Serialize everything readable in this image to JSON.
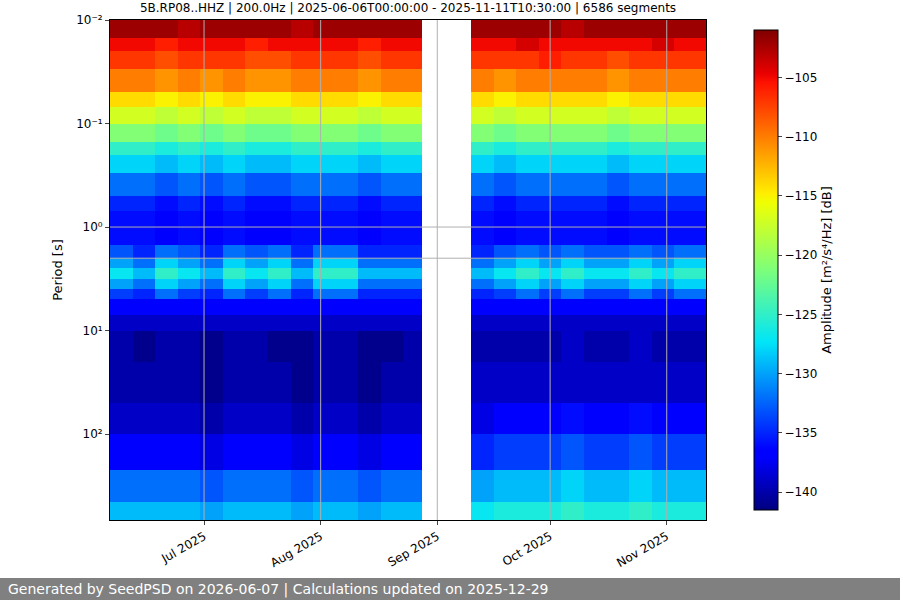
{
  "chart_data": {
    "type": "heatmap",
    "title": "5B.RP08..HHZ | 200.0Hz | 2025-06-06T00:00:00 - 2025-11-11T10:30:00 | 6586 segments",
    "y_label": "Period [s]",
    "colorbar_label": "Amplitude [m²/s⁴/Hz] [dB]",
    "footer": "Generated by SeedPSD on 2026-06-07 | Calculations updated on 2025-12-29",
    "color": "jet",
    "log": "y",
    "grid": true,
    "xlim": [
      "2025-06-06T00:00:00",
      "2025-11-11T10:30:00"
    ],
    "xticks": [
      {
        "value": "2025-07-01",
        "label": "Jul 2025"
      },
      {
        "value": "2025-08-01",
        "label": "Aug 2025"
      },
      {
        "value": "2025-09-01",
        "label": "Sep 2025"
      },
      {
        "value": "2025-10-01",
        "label": "Oct 2025"
      },
      {
        "value": "2025-11-01",
        "label": "Nov 2025"
      }
    ],
    "ylim": [
      0.01,
      676
    ],
    "yticks": [
      {
        "value": 0.01,
        "label": "10⁻²"
      },
      {
        "value": 0.1,
        "label": "10⁻¹"
      },
      {
        "value": 1,
        "label": "10⁰"
      },
      {
        "value": 10,
        "label": "10¹"
      },
      {
        "value": 100,
        "label": "10²"
      }
    ],
    "colorbar_range": [
      -141.5,
      -101
    ],
    "colorbar_ticks": [
      -140,
      -135,
      -130,
      -125,
      -120,
      -115,
      -110,
      -105
    ],
    "x_edges": [
      "2025-06-06",
      "2025-06-12",
      "2025-06-18",
      "2025-06-24",
      "2025-06-30",
      "2025-07-06",
      "2025-07-12",
      "2025-07-18",
      "2025-07-24",
      "2025-07-30",
      "2025-08-05",
      "2025-08-11",
      "2025-08-17",
      "2025-08-23",
      "2025-08-28",
      "2025-09-10",
      "2025-09-16",
      "2025-09-22",
      "2025-09-28",
      "2025-10-04",
      "2025-10-10",
      "2025-10-16",
      "2025-10-22",
      "2025-10-28",
      "2025-11-03",
      "2025-11-11T10:30:00"
    ],
    "period_edges": [
      0.01,
      0.015,
      0.02,
      0.03,
      0.05,
      0.07,
      0.1,
      0.15,
      0.2,
      0.3,
      0.5,
      0.7,
      1,
      1.5,
      2,
      2.5,
      3.2,
      4,
      5,
      7,
      10,
      20,
      50,
      100,
      220,
      450,
      676
    ],
    "cells": [
      [
        -102,
        -102,
        -102,
        -103,
        -102,
        -102,
        -102,
        -102,
        -103,
        -102,
        -102,
        -102,
        -102,
        -102,
        null,
        -102,
        -102,
        -102,
        -102,
        -103,
        -102,
        -102,
        -102,
        -102,
        -102
      ],
      [
        -105,
        -105,
        -106,
        -105,
        -105,
        -105,
        -106,
        -105,
        -105,
        -105,
        -105,
        -106,
        -105,
        -105,
        null,
        -105,
        -105,
        -104,
        -105,
        -105,
        -105,
        -105,
        -105,
        -104,
        -105
      ],
      [
        -107,
        -107,
        -108,
        -107,
        -107,
        -107,
        -108,
        -108,
        -107,
        -107,
        -107,
        -108,
        -107,
        -107,
        null,
        -107,
        -107,
        -107,
        -106,
        -107,
        -107,
        -108,
        -107,
        -107,
        -107
      ],
      [
        -110,
        -110,
        -111,
        -110,
        -111,
        -110,
        -111,
        -111,
        -110,
        -110,
        -110,
        -111,
        -110,
        -110,
        null,
        -110,
        -111,
        -110,
        -110,
        -110,
        -110,
        -111,
        -110,
        -110,
        -110
      ],
      [
        -114,
        -114,
        -115,
        -114,
        -115,
        -114,
        -115,
        -115,
        -114,
        -114,
        -114,
        -115,
        -114,
        -114,
        null,
        -114,
        -115,
        -114,
        -114,
        -114,
        -114,
        -115,
        -114,
        -114,
        -114
      ],
      [
        -117,
        -117,
        -118,
        -117,
        -118,
        -117,
        -118,
        -118,
        -117,
        -117,
        -117,
        -118,
        -117,
        -117,
        null,
        -117,
        -118,
        -117,
        -117,
        -117,
        -117,
        -118,
        -117,
        -117,
        -117
      ],
      [
        -121,
        -121,
        -122,
        -121,
        -122,
        -121,
        -122,
        -122,
        -121,
        -121,
        -121,
        -122,
        -121,
        -121,
        null,
        -121,
        -122,
        -121,
        -121,
        -121,
        -121,
        -122,
        -121,
        -121,
        -121
      ],
      [
        -125,
        -125,
        -126,
        -125,
        -126,
        -125,
        -126,
        -126,
        -125,
        -125,
        -125,
        -126,
        -125,
        -125,
        null,
        -125,
        -126,
        -125,
        -125,
        -125,
        -125,
        -126,
        -125,
        -125,
        -125
      ],
      [
        -128,
        -128,
        -129,
        -128,
        -129,
        -128,
        -129,
        -129,
        -128,
        -128,
        -128,
        -129,
        -128,
        -128,
        null,
        -128,
        -129,
        -128,
        -128,
        -128,
        -128,
        -129,
        -128,
        -128,
        -128
      ],
      [
        -132,
        -132,
        -133,
        -132,
        -133,
        -132,
        -133,
        -133,
        -132,
        -132,
        -132,
        -133,
        -132,
        -132,
        null,
        -132,
        -133,
        -132,
        -132,
        -132,
        -132,
        -133,
        -132,
        -132,
        -132
      ],
      [
        -135,
        -135,
        -136,
        -135,
        -136,
        -135,
        -136,
        -136,
        -135,
        -135,
        -135,
        -136,
        -135,
        -135,
        null,
        -135,
        -136,
        -135,
        -135,
        -135,
        -135,
        -136,
        -135,
        -135,
        -135
      ],
      [
        -136,
        -136,
        -137,
        -136,
        -137,
        -136,
        -137,
        -137,
        -136,
        -136,
        -136,
        -137,
        -136,
        -136,
        null,
        -136,
        -137,
        -136,
        -136,
        -136,
        -136,
        -137,
        -136,
        -136,
        -136
      ],
      [
        -136,
        -136,
        -137,
        -136,
        -137,
        -136,
        -137,
        -137,
        -136,
        -136,
        -136,
        -137,
        -136,
        -136,
        null,
        -136,
        -137,
        -136,
        -136,
        -136,
        -136,
        -137,
        -136,
        -136,
        -136
      ],
      [
        -133,
        -135,
        -132,
        -133,
        -135,
        -132,
        -133,
        -132,
        -135,
        -132,
        -132,
        -135,
        -135,
        -135,
        null,
        -135,
        -133,
        -132,
        -133,
        -132,
        -133,
        -133,
        -132,
        -133,
        -132
      ],
      [
        -130,
        -132,
        -128,
        -130,
        -132,
        -128,
        -130,
        -128,
        -132,
        -128,
        -128,
        -132,
        -132,
        -132,
        null,
        -132,
        -130,
        -128,
        -130,
        -128,
        -130,
        -130,
        -128,
        -130,
        -128
      ],
      [
        -127,
        -129,
        -125,
        -127,
        -129,
        -125,
        -127,
        -125,
        -129,
        -125,
        -125,
        -129,
        -129,
        -129,
        null,
        -129,
        -127,
        -125,
        -127,
        -125,
        -127,
        -127,
        -125,
        -127,
        -125
      ],
      [
        -130,
        -132,
        -128,
        -130,
        -132,
        -128,
        -130,
        -128,
        -132,
        -128,
        -128,
        -132,
        -132,
        -132,
        null,
        -132,
        -130,
        -128,
        -130,
        -128,
        -130,
        -130,
        -128,
        -130,
        -128
      ],
      [
        -134,
        -135,
        -132,
        -134,
        -135,
        -132,
        -134,
        -132,
        -135,
        -132,
        -132,
        -135,
        -135,
        -135,
        null,
        -135,
        -134,
        -132,
        -134,
        -132,
        -134,
        -134,
        -132,
        -134,
        -132
      ],
      [
        -137,
        -137,
        -137,
        -137,
        -137,
        -137,
        -137,
        -137,
        -137,
        -137,
        -137,
        -137,
        -137,
        -137,
        null,
        -137,
        -137,
        -137,
        -137,
        -137,
        -137,
        -137,
        -137,
        -137,
        -137
      ],
      [
        -139,
        -139,
        -139,
        -139,
        -139,
        -139,
        -139,
        -139,
        -139,
        -139,
        -139,
        -139,
        -139,
        -139,
        null,
        -139,
        -139,
        -139,
        -139,
        -139,
        -139,
        -139,
        -139,
        -139,
        -139
      ],
      [
        -140,
        -141,
        -140,
        -140,
        -141,
        -140,
        -140,
        -141,
        -141,
        -140,
        -140,
        -141,
        -141,
        -140,
        null,
        -140,
        -140,
        -140,
        -140,
        -139,
        -140,
        -140,
        -139,
        -140,
        -140
      ],
      [
        -140,
        -140,
        -140,
        -140,
        -141,
        -140,
        -140,
        -140,
        -141,
        -140,
        -140,
        -141,
        -140,
        -140,
        null,
        -139,
        -139,
        -139,
        -139,
        -139,
        -139,
        -139,
        -139,
        -139,
        -139
      ],
      [
        -139,
        -139,
        -139,
        -139,
        -140,
        -139,
        -139,
        -139,
        -140,
        -139,
        -139,
        -140,
        -139,
        -139,
        null,
        -138,
        -137,
        -137,
        -137,
        -136,
        -137,
        -137,
        -136,
        -137,
        -137
      ],
      [
        -137,
        -137,
        -137,
        -137,
        -138,
        -137,
        -137,
        -137,
        -138,
        -137,
        -137,
        -138,
        -137,
        -137,
        null,
        -135,
        -134,
        -134,
        -134,
        -133,
        -134,
        -134,
        -133,
        -134,
        -134
      ],
      [
        -132,
        -132,
        -132,
        -132,
        -133,
        -132,
        -132,
        -132,
        -133,
        -132,
        -132,
        -133,
        -132,
        -132,
        null,
        -130,
        -129,
        -129,
        -129,
        -128,
        -129,
        -129,
        -128,
        -129,
        -129
      ],
      [
        -129,
        -129,
        -129,
        -129,
        -130,
        -129,
        -129,
        -129,
        -130,
        -129,
        -129,
        -130,
        -129,
        -129,
        null,
        -127,
        -126,
        -126,
        -126,
        -125,
        -126,
        -126,
        -125,
        -126,
        -126
      ]
    ]
  }
}
